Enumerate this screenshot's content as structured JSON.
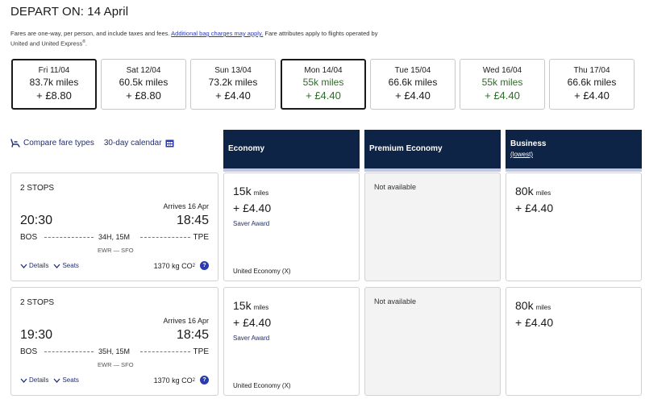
{
  "header": {
    "title": "DEPART ON: 14 April",
    "disclaimer_text": "Fares are one-way, per person, and include taxes and fees.",
    "disclaimer_link": "Additional bag charges may apply.",
    "disclaimer_tail": "Fare attributes apply to flights operated by",
    "disclaimer_line2": "United and United Express",
    "disclaimer_sup": "®",
    "disclaimer_end": "."
  },
  "dates": [
    {
      "day": "Fri 11/04",
      "miles": "83.7k miles",
      "fee": "+ £8.80",
      "selected": true,
      "green": false
    },
    {
      "day": "Sat 12/04",
      "miles": "60.5k miles",
      "fee": "+ £8.80",
      "selected": false,
      "green": false
    },
    {
      "day": "Sun 13/04",
      "miles": "73.2k miles",
      "fee": "+ £4.40",
      "selected": false,
      "green": false
    },
    {
      "day": "Mon 14/04",
      "miles": "55k miles",
      "fee": "+ £4.40",
      "selected": true,
      "green": true
    },
    {
      "day": "Tue 15/04",
      "miles": "66.6k miles",
      "fee": "+ £4.40",
      "selected": false,
      "green": false
    },
    {
      "day": "Wed 16/04",
      "miles": "55k miles",
      "fee": "+ £4.40",
      "selected": false,
      "green": true
    },
    {
      "day": "Thu 17/04",
      "miles": "66.6k miles",
      "fee": "+ £4.40",
      "selected": false,
      "green": false
    }
  ],
  "tools": {
    "compare": "Compare fare types",
    "calendar": "30-day calendar"
  },
  "columns": {
    "economy": "Economy",
    "premium": "Premium Economy",
    "business": "Business",
    "business_sub": "(lowest)"
  },
  "flights": [
    {
      "stops": "2 STOPS",
      "arrives": "Arrives 16 Apr",
      "dep_time": "20:30",
      "arr_time": "18:45",
      "origin": "BOS",
      "dest": "TPE",
      "duration": "34H, 15M",
      "via": "EWR — SFO",
      "details": "Details",
      "seats": "Seats",
      "co2": "1370 kg CO",
      "co2_sub": "2",
      "info": "?",
      "economy": {
        "miles": "15k",
        "unit": "miles",
        "fee": "+ £4.40",
        "saver": "Saver Award",
        "cabin": "United Economy (X)"
      },
      "premium": {
        "na": "Not available"
      },
      "business": {
        "miles": "80k",
        "unit": "miles",
        "fee": "+ £4.40"
      }
    },
    {
      "stops": "2 STOPS",
      "arrives": "Arrives 16 Apr",
      "dep_time": "19:30",
      "arr_time": "18:45",
      "origin": "BOS",
      "dest": "TPE",
      "duration": "35H, 15M",
      "via": "EWR — SFO",
      "details": "Details",
      "seats": "Seats",
      "co2": "1370 kg CO",
      "co2_sub": "2",
      "info": "?",
      "economy": {
        "miles": "15k",
        "unit": "miles",
        "fee": "+ £4.40",
        "saver": "Saver Award",
        "cabin": "United Economy (X)"
      },
      "premium": {
        "na": "Not available"
      },
      "business": {
        "miles": "80k",
        "unit": "miles",
        "fee": "+ £4.40"
      }
    }
  ],
  "colors": {
    "navy": "#0d2446",
    "accent_bar": "#c3c6df",
    "link": "#1f2f78",
    "green": "#2e6b2a"
  }
}
